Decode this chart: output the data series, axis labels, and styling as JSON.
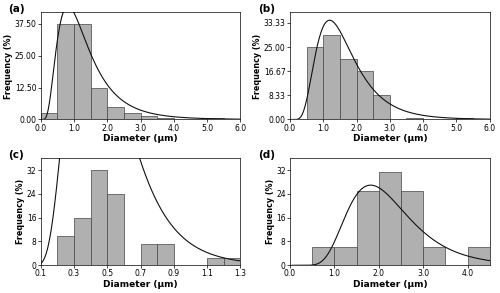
{
  "subplots": [
    {
      "label": "(a)",
      "bar_edges": [
        0.0,
        0.5,
        1.0,
        1.5,
        2.0,
        2.5,
        3.0,
        3.5,
        4.0,
        4.5,
        5.0,
        5.5,
        6.0
      ],
      "bar_heights": [
        2.5,
        37.5,
        37.5,
        12.5,
        5.0,
        2.5,
        1.25,
        0.5,
        0.0,
        0.0,
        0.5,
        0.0
      ],
      "yticks": [
        0.0,
        12.5,
        25.0,
        37.5
      ],
      "ytick_labels": [
        "0.00",
        "12.50",
        "25.00",
        "37.50"
      ],
      "ylim": [
        0,
        42
      ],
      "xlim": [
        0.0,
        6.0
      ],
      "xticks": [
        0.0,
        1.0,
        2.0,
        3.0,
        4.0,
        5.0,
        6.0
      ],
      "xtick_labels": [
        "0.0",
        "1.0",
        "2.0",
        "3.0",
        "4.0",
        "5.0",
        "6.0"
      ],
      "xlabel": "Diameter (μm)",
      "ylabel": "Frequency (%)",
      "curve_params": {
        "mu": 1.15,
        "sigma": 0.58,
        "A": 25.0
      }
    },
    {
      "label": "(b)",
      "bar_edges": [
        0.0,
        0.5,
        1.0,
        1.5,
        2.0,
        2.5,
        3.0,
        3.5,
        4.0,
        4.5,
        5.0,
        5.5,
        6.0
      ],
      "bar_heights": [
        0.0,
        25.0,
        29.17,
        20.83,
        16.67,
        8.33,
        0.0,
        0.5,
        0.0,
        0.0,
        0.5,
        0.0
      ],
      "yticks": [
        0.0,
        8.33,
        16.67,
        25.0,
        33.33
      ],
      "ytick_labels": [
        "0.00",
        "8.33",
        "16.67",
        "25.00",
        "33.33"
      ],
      "ylim": [
        0,
        37
      ],
      "xlim": [
        0.0,
        6.0
      ],
      "xticks": [
        0.0,
        1.0,
        2.0,
        3.0,
        4.0,
        5.0,
        6.0
      ],
      "xtick_labels": [
        "0.0",
        "1.0",
        "2.0",
        "3.0",
        "4.0",
        "5.0",
        "6.0"
      ],
      "xlabel": "Diameter (μm)",
      "ylabel": "Frequency (%)",
      "curve_params": {
        "mu": 1.5,
        "sigma": 0.48,
        "A": 22.0
      }
    },
    {
      "label": "(c)",
      "bar_edges": [
        0.1,
        0.2,
        0.3,
        0.4,
        0.5,
        0.6,
        0.7,
        0.8,
        0.9,
        1.0,
        1.1,
        1.2,
        1.3
      ],
      "bar_heights": [
        0.0,
        10.0,
        16.0,
        32.0,
        24.0,
        0.0,
        7.0,
        7.0,
        0.0,
        0.0,
        2.5,
        2.5
      ],
      "yticks": [
        0,
        8,
        16,
        24,
        32
      ],
      "ytick_labels": [
        "0",
        "8",
        "16",
        "24",
        "32"
      ],
      "ylim": [
        0,
        36
      ],
      "xlim": [
        0.1,
        1.3
      ],
      "xticks": [
        0.1,
        0.3,
        0.5,
        0.7,
        0.9,
        1.1,
        1.3
      ],
      "xtick_labels": [
        "0.1",
        "0.3",
        "0.5",
        "0.7",
        "0.9",
        "1.1",
        "1.3"
      ],
      "xlabel": "Diameter (μm)",
      "ylabel": "Frequency (%)",
      "curve_params": {
        "mu": 0.46,
        "sigma": 0.42,
        "A": 17.0
      }
    },
    {
      "label": "(d)",
      "bar_edges": [
        0.5,
        1.0,
        1.5,
        2.0,
        2.5,
        3.0,
        3.5,
        4.0,
        4.5
      ],
      "bar_heights": [
        6.25,
        6.25,
        25.0,
        31.25,
        25.0,
        6.25,
        0.0,
        6.25
      ],
      "yticks": [
        0,
        8,
        16,
        24,
        32
      ],
      "ytick_labels": [
        "0",
        "8",
        "16",
        "24",
        "32"
      ],
      "ylim": [
        0,
        36
      ],
      "xlim": [
        0.0,
        4.5
      ],
      "xticks": [
        0.0,
        1.0,
        2.0,
        3.0,
        4.0
      ],
      "xtick_labels": [
        "0.0",
        "1.0",
        "2.0",
        "3.0",
        "4.0"
      ],
      "xlabel": "Diameter (μm)",
      "ylabel": "Frequency (%)",
      "curve_params": {
        "mu": 2.1,
        "sigma": 0.38,
        "A": 20.0
      }
    }
  ],
  "bar_color": "#b0b0b0",
  "bar_edgecolor": "#444444",
  "curve_color": "#111111",
  "background_color": "#ffffff",
  "fig_width": 5.0,
  "fig_height": 2.93,
  "dpi": 100
}
